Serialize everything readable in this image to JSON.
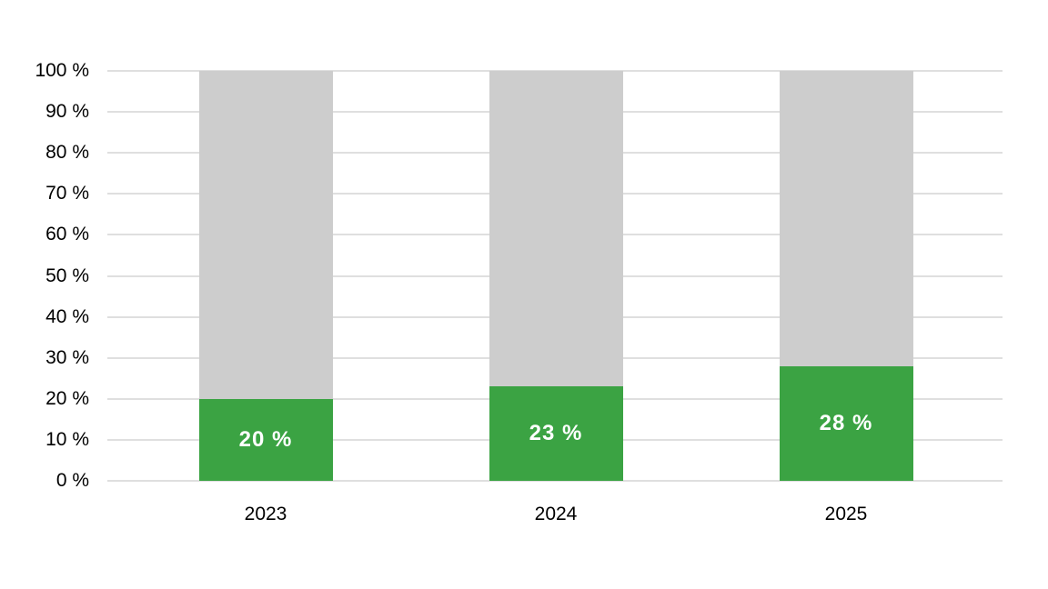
{
  "chart_data": {
    "type": "bar",
    "stacked": true,
    "categories": [
      "2023",
      "2024",
      "2025"
    ],
    "series": [
      {
        "name": "highlighted-share",
        "color": "#3BA343",
        "values": [
          20,
          23,
          28
        ]
      },
      {
        "name": "remainder",
        "color": "#CDCDCD",
        "values": [
          80,
          77,
          72
        ]
      }
    ],
    "bar_labels": [
      "20 %",
      "23 %",
      "28 %"
    ],
    "xlabel": "",
    "ylabel": "",
    "y_axis": {
      "min": 0,
      "max": 100,
      "step": 10,
      "ticks": [
        "0 %",
        "10 %",
        "20 %",
        "30 %",
        "40 %",
        "50 %",
        "60 %",
        "70 %",
        "80 %",
        "90 %",
        "100 %"
      ]
    },
    "grid": "horizontal",
    "legend": "none",
    "colors": {
      "bar_value": "#3BA343",
      "bar_remainder": "#CDCDCD",
      "gridline": "#DFDFDF",
      "bar_label_text": "#FFFFFF",
      "axis_text": "#000000",
      "background": "#FFFFFF"
    }
  }
}
